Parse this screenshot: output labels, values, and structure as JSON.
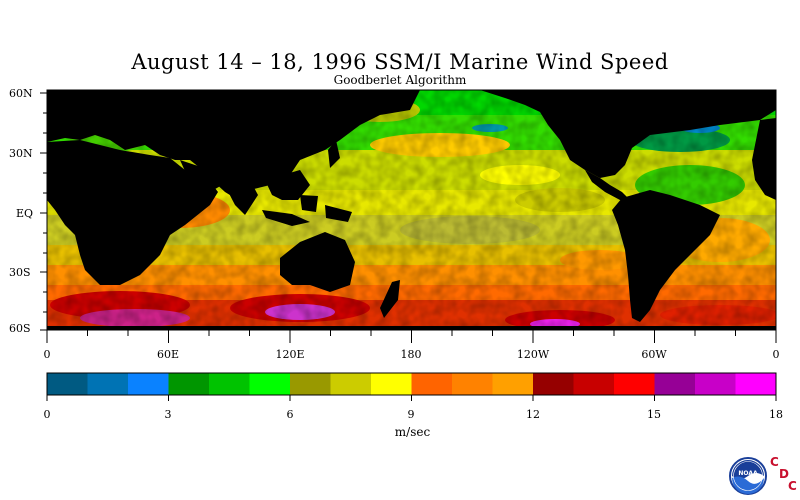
{
  "title": "August 14 – 18, 1996 SSM/I Marine Wind Speed",
  "subtitle": "Goodberlet Algorithm",
  "lat_labels": [
    "60N",
    "30N",
    "EQ",
    "30S",
    "60S"
  ],
  "lon_labels": [
    "0",
    "60E",
    "120E",
    "180",
    "120W",
    "60W",
    "0"
  ],
  "colorbar": {
    "colors": [
      "#005a82",
      "#0073b4",
      "#0a82ff",
      "#009600",
      "#00c300",
      "#00ff00",
      "#999900",
      "#cccc00",
      "#ffff00",
      "#ff6400",
      "#ff8200",
      "#ffa000",
      "#960000",
      "#c80000",
      "#ff0000",
      "#960096",
      "#c800c8",
      "#ff00ff"
    ],
    "tick_labels": [
      "0",
      "3",
      "6",
      "9",
      "12",
      "15",
      "18"
    ],
    "units": "m/sec"
  },
  "land_color": "#000000",
  "logo": {
    "emblem_text": "NOAA",
    "letters": [
      "C",
      "D",
      "C"
    ]
  }
}
